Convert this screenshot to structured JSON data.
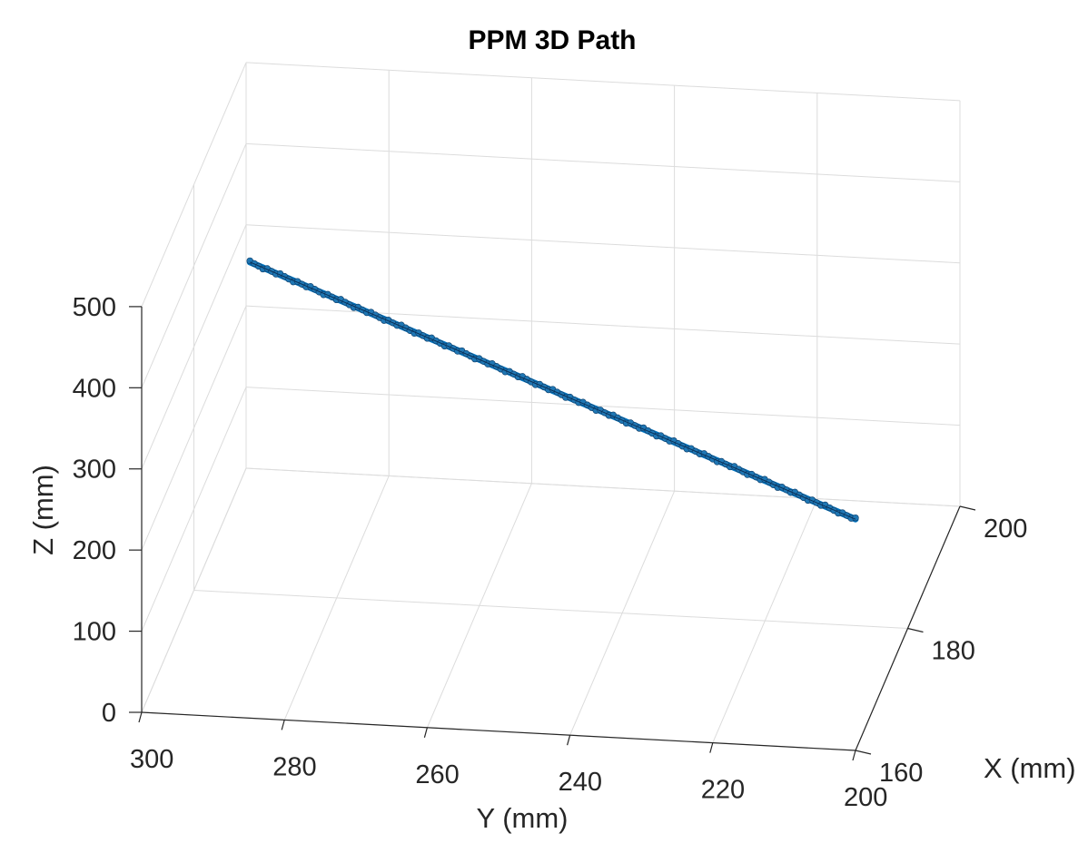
{
  "chart_data": {
    "type": "line3d",
    "title": "PPM 3D Path",
    "xlabel": "X (mm)",
    "ylabel": "Y (mm)",
    "zlabel": "Z (mm)",
    "xlim": [
      160,
      200
    ],
    "ylim": [
      200,
      300
    ],
    "zlim": [
      0,
      500
    ],
    "x_ticks": [
      "160",
      "180",
      "200"
    ],
    "y_ticks": [
      "300",
      "280",
      "260",
      "240",
      "220",
      "200"
    ],
    "z_ticks": [
      "0",
      "100",
      "200",
      "300",
      "400",
      "500"
    ],
    "grid": true,
    "series": [
      {
        "color": "#0072BD",
        "marker_color": "#1f77b4",
        "start": {
          "x": 196,
          "y": 298,
          "z": 285
        },
        "end": {
          "x": 160,
          "y": 200,
          "z": 285
        }
      }
    ]
  }
}
